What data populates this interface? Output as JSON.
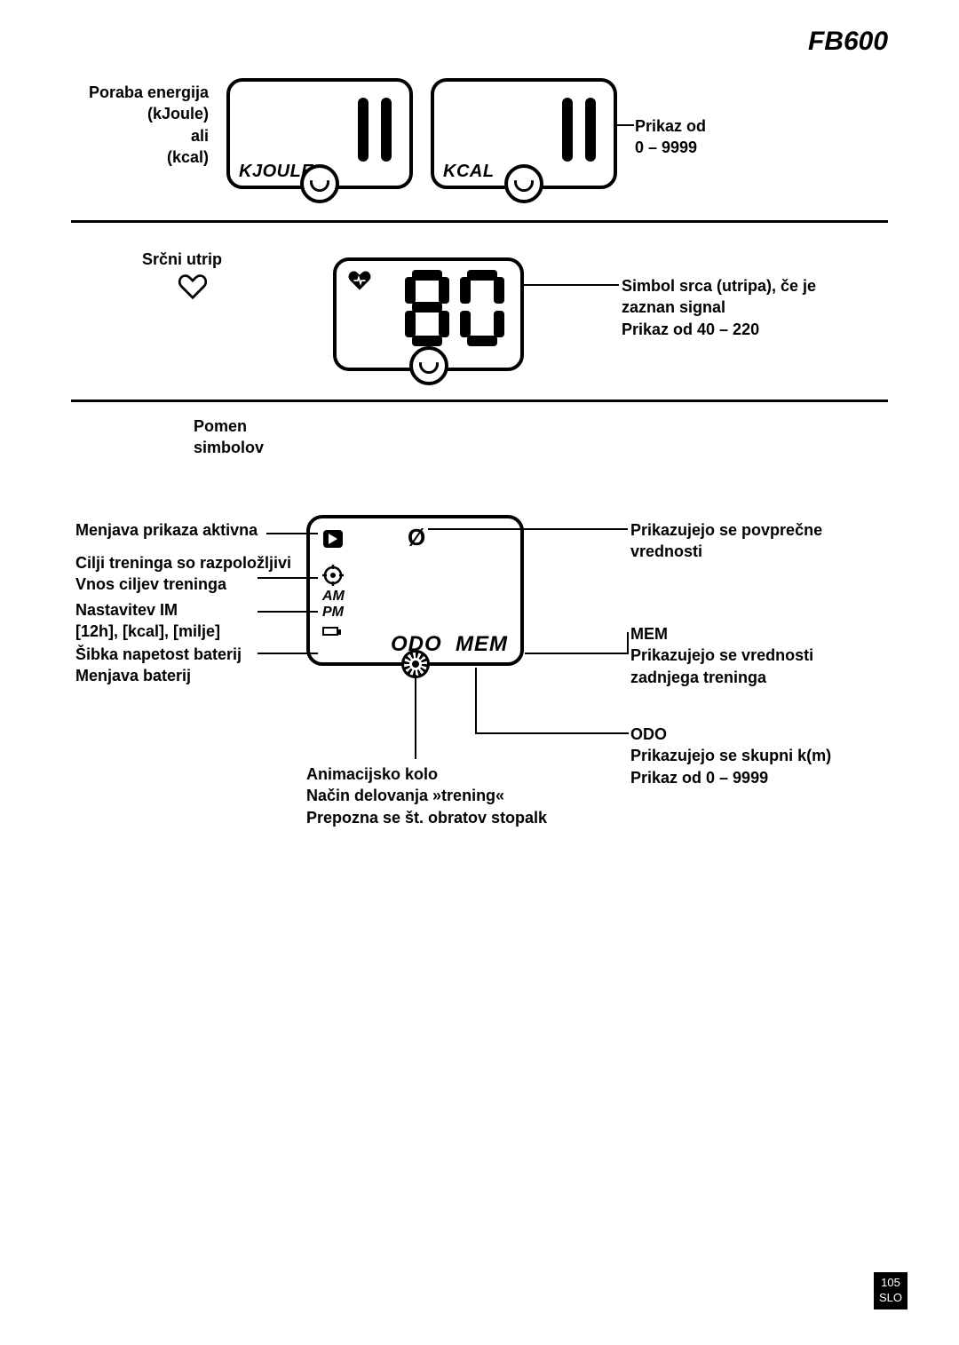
{
  "model": "FB600",
  "page_number": "105",
  "page_lang": "SLO",
  "section1": {
    "left_label": "Poraba energija\n(kJoule)\nali\n(kcal)",
    "lcd1_label": "KJOULE",
    "lcd2_label": "KCAL",
    "right_label": "Prikaz od\n0 – 9999"
  },
  "section2": {
    "left_label": "Srčni utrip",
    "hr_value": "80",
    "right_label": "Simbol srca (utripa), če je\nzaznan signal\nPrikaz od 40 – 220"
  },
  "section3": {
    "title": "Pomen\nsimbolov",
    "left": {
      "l1": "Menjava prikaza aktivna",
      "l2": "Cilji treninga so razpoložljivi\nVnos ciljev treninga",
      "l3": "Nastavitev IM\n[12h], [kcal], [milje]",
      "l4": "Šibka napetost baterij\nMenjava baterij"
    },
    "bottom": "Animacijsko kolo\nNačin delovanja »trening«\nPrepozna se št. obratov stopalk",
    "right": {
      "r1": "Prikazujejo se povprečne\nvrednosti",
      "r2": "MEM\nPrikazujejo se vrednosti\nzadnjega treninga",
      "r3": "ODO\nPrikazujejo se skupni k(m)\nPrikaz od 0 – 9999"
    },
    "lcd": {
      "am": "AM",
      "pm": "PM",
      "odo": "ODO",
      "mem": "MEM"
    }
  }
}
